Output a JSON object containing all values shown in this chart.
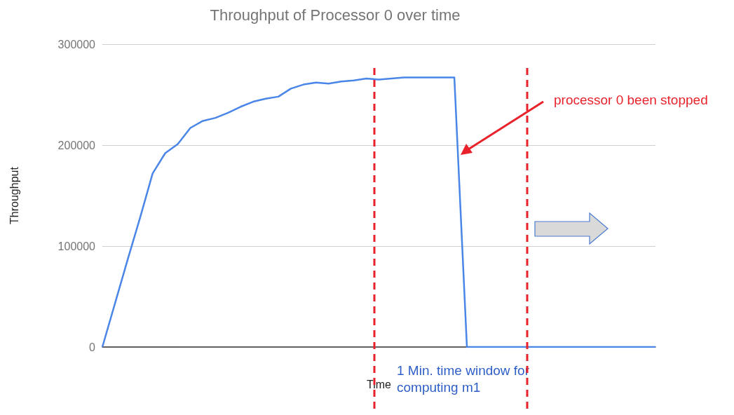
{
  "chart_data": {
    "type": "line",
    "title": "Throughput of Processor 0 over time",
    "xlabel": "Time",
    "ylabel": "Throughput",
    "categories": [
      null,
      null,
      null,
      null,
      null,
      null,
      null,
      null,
      null,
      null,
      null,
      null,
      null,
      null,
      null,
      null,
      null,
      null,
      null,
      null,
      null,
      null,
      null,
      null,
      null,
      null,
      null,
      null,
      null,
      null,
      null,
      null,
      null,
      null,
      null,
      null,
      null,
      null,
      null,
      null,
      null,
      null,
      null,
      null,
      null
    ],
    "series": [
      {
        "color": "#4a86e8",
        "values": [
          0,
          43000,
          86000,
          128000,
          172000,
          192000,
          201000,
          217000,
          224000,
          227000,
          232000,
          238000,
          243000,
          246000,
          248000,
          256000,
          260000,
          262000,
          261000,
          263000,
          264000,
          266000,
          265000,
          266000,
          267000,
          267000,
          267000,
          267000,
          267000,
          0,
          0,
          0,
          0,
          0,
          0,
          0,
          0,
          0,
          0,
          0,
          0,
          0,
          0,
          0,
          0
        ]
      }
    ],
    "ylim": [
      0,
      300000
    ],
    "yticks": [
      0,
      100000,
      200000,
      300000
    ],
    "grid": "y",
    "tick_labels": "y",
    "marker": "none",
    "line_style": "solid",
    "annotations": [
      "processor 0 been stopped",
      "1 Min. time window for computing m1"
    ]
  }
}
